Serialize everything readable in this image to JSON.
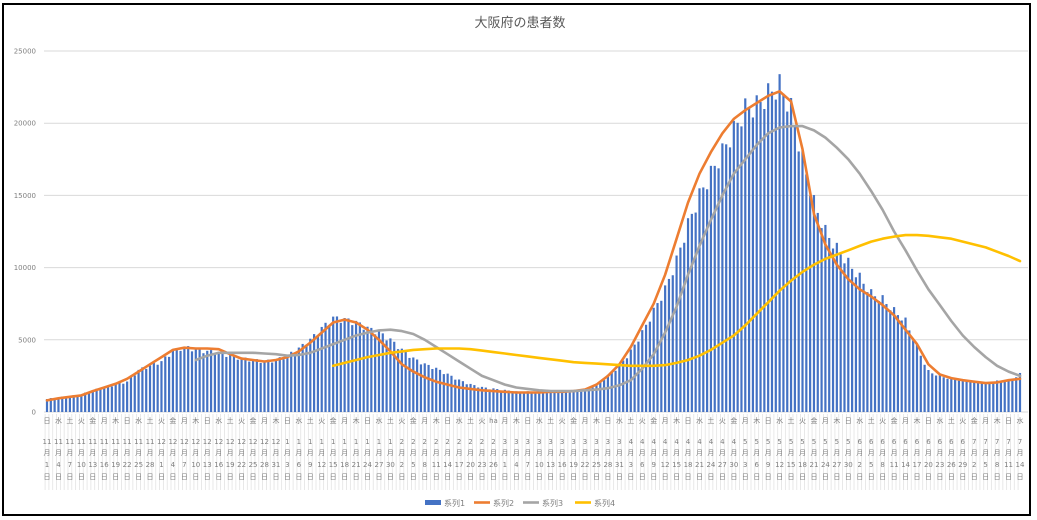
{
  "chart_data": {
    "type": "bar+line",
    "title": "大阪府の患者数",
    "xlabel": "",
    "ylabel": "",
    "ylim": [
      0,
      25000
    ],
    "yticks": [
      0,
      5000,
      10000,
      15000,
      20000,
      25000
    ],
    "ytick_labels": [
      "0",
      "5000",
      "10000",
      "15000",
      "20000",
      "25000"
    ],
    "grid": true,
    "legend_position": "bottom",
    "month_suffix": "月",
    "day_suffix": "日",
    "categories_month": [
      11,
      11,
      11,
      11,
      11,
      11,
      11,
      11,
      11,
      11,
      12,
      12,
      12,
      12,
      12,
      12,
      12,
      12,
      12,
      12,
      12,
      1,
      1,
      1,
      1,
      1,
      1,
      1,
      1,
      1,
      1,
      2,
      2,
      2,
      2,
      2,
      2,
      2,
      2,
      2,
      3,
      3,
      3,
      3,
      3,
      3,
      3,
      3,
      3,
      3,
      3,
      4,
      4,
      4,
      4,
      4,
      4,
      4,
      4,
      4,
      4,
      5,
      5,
      5,
      5,
      5,
      5,
      5,
      5,
      5,
      5,
      6,
      6,
      6,
      6,
      6,
      6,
      6,
      6,
      6,
      6,
      7,
      7,
      7,
      7,
      7
    ],
    "categories_day": [
      1,
      4,
      7,
      10,
      13,
      16,
      19,
      22,
      25,
      28,
      1,
      4,
      7,
      10,
      13,
      16,
      19,
      22,
      25,
      28,
      31,
      3,
      6,
      9,
      12,
      15,
      18,
      21,
      24,
      27,
      30,
      2,
      5,
      8,
      11,
      14,
      17,
      20,
      23,
      26,
      1,
      4,
      7,
      10,
      13,
      16,
      19,
      22,
      25,
      28,
      31,
      3,
      6,
      9,
      12,
      15,
      18,
      21,
      24,
      27,
      30,
      3,
      6,
      9,
      12,
      15,
      18,
      21,
      24,
      27,
      30,
      2,
      5,
      8,
      11,
      14,
      17,
      20,
      23,
      26,
      29,
      2,
      5,
      8,
      11,
      14
    ],
    "categories_weekday": [
      "日",
      "水",
      "土",
      "火",
      "金",
      "月",
      "木",
      "日",
      "水",
      "土",
      "火",
      "金",
      "月",
      "木",
      "日",
      "水",
      "土",
      "火",
      "金",
      "月",
      "木",
      "日",
      "水",
      "土",
      "火",
      "金",
      "月",
      "木",
      "日",
      "水",
      "土",
      "火",
      "金",
      "月",
      "木",
      "日",
      "水",
      "土",
      "火",
      "ha",
      "月",
      "木",
      "日",
      "水",
      "土",
      "火",
      "金",
      "月",
      "木",
      "日",
      "水",
      "土",
      "火",
      "金",
      "月",
      "木",
      "日",
      "水",
      "土",
      "火",
      "金",
      "月",
      "木",
      "日",
      "水",
      "土",
      "火",
      "金",
      "月",
      "木",
      "日",
      "水",
      "土",
      "火",
      "金",
      "月",
      "木",
      "日",
      "水",
      "土",
      "火",
      "金",
      "月",
      "木",
      "日",
      "水"
    ],
    "days_between_categories": 3,
    "series": [
      {
        "name": "系列1",
        "type": "bar",
        "color": "#4472c4",
        "values": [
          900,
          1000,
          1100,
          1200,
          1500,
          1700,
          1900,
          2100,
          2900,
          3200,
          3500,
          4200,
          4500,
          4300,
          4200,
          4100,
          3900,
          3700,
          3600,
          3500,
          3600,
          3900,
          4400,
          5000,
          5800,
          6500,
          6400,
          6200,
          5800,
          5500,
          5000,
          4300,
          3700,
          3300,
          3000,
          2600,
          2200,
          1900,
          1700,
          1600,
          1500,
          1400,
          1400,
          1400,
          1400,
          1400,
          1400,
          1500,
          1900,
          2500,
          3200,
          4200,
          5500,
          7000,
          8500,
          10500,
          13000,
          15000,
          16500,
          18000,
          19500,
          21000,
          21200,
          22000,
          22600,
          21000,
          17500,
          14500,
          12500,
          11300,
          10300,
          9300,
          8200,
          7800,
          7000,
          6300,
          4500,
          2800,
          2500,
          2300,
          2200,
          2100,
          2000,
          2100,
          2200,
          2600
        ]
      },
      {
        "name": "系列2",
        "type": "line",
        "color": "#ed7d31",
        "values": [
          800,
          950,
          1050,
          1150,
          1450,
          1700,
          1950,
          2300,
          2800,
          3300,
          3800,
          4300,
          4450,
          4400,
          4400,
          4350,
          4000,
          3700,
          3600,
          3500,
          3600,
          3800,
          4200,
          4800,
          5500,
          6200,
          6400,
          6200,
          5700,
          5000,
          4200,
          3300,
          2800,
          2400,
          2100,
          1900,
          1700,
          1600,
          1500,
          1450,
          1400,
          1350,
          1350,
          1350,
          1400,
          1400,
          1450,
          1550,
          1900,
          2500,
          3300,
          4500,
          6000,
          7500,
          9500,
          12000,
          14500,
          16500,
          18000,
          19300,
          20300,
          20900,
          21400,
          21900,
          22200,
          21500,
          18200,
          13700,
          11600,
          10200,
          9200,
          8500,
          8000,
          7400,
          6700,
          5700,
          4700,
          3300,
          2600,
          2350,
          2200,
          2100,
          2000,
          2050,
          2200,
          2300
        ]
      },
      {
        "name": "系列3",
        "type": "line",
        "color": "#a5a5a5",
        "values": [
          null,
          null,
          null,
          null,
          null,
          null,
          null,
          null,
          null,
          null,
          null,
          null,
          null,
          3600,
          3900,
          4100,
          4100,
          4100,
          4100,
          4050,
          4000,
          3900,
          3950,
          4100,
          4400,
          4700,
          5000,
          5300,
          5500,
          5650,
          5700,
          5600,
          5400,
          5000,
          4500,
          4000,
          3500,
          3000,
          2500,
          2200,
          1900,
          1700,
          1600,
          1500,
          1450,
          1450,
          1450,
          1500,
          1550,
          1650,
          1850,
          2200,
          3000,
          4000,
          5500,
          7300,
          9500,
          11500,
          13300,
          15000,
          16500,
          17500,
          18500,
          19300,
          19700,
          19800,
          19800,
          19500,
          19000,
          18300,
          17500,
          16500,
          15300,
          14000,
          12500,
          11200,
          9800,
          8500,
          7400,
          6300,
          5300,
          4500,
          3800,
          3200,
          2800,
          2500
        ]
      },
      {
        "name": "系列4",
        "type": "line",
        "color": "#ffc000",
        "values": [
          null,
          null,
          null,
          null,
          null,
          null,
          null,
          null,
          null,
          null,
          null,
          null,
          null,
          null,
          null,
          null,
          null,
          null,
          null,
          null,
          null,
          null,
          null,
          null,
          null,
          3200,
          3400,
          3600,
          3800,
          3950,
          4100,
          4200,
          4300,
          4350,
          4400,
          4400,
          4400,
          4350,
          4250,
          4150,
          4050,
          3950,
          3850,
          3750,
          3650,
          3550,
          3450,
          3400,
          3350,
          3300,
          3250,
          3200,
          3200,
          3200,
          3250,
          3400,
          3600,
          3900,
          4300,
          4800,
          5300,
          6000,
          6800,
          7600,
          8400,
          9100,
          9700,
          10200,
          10600,
          10900,
          11200,
          11500,
          11800,
          12000,
          12150,
          12250,
          12250,
          12200,
          12100,
          12000,
          11800,
          11600,
          11400,
          11100,
          10800,
          10450
        ]
      }
    ]
  }
}
